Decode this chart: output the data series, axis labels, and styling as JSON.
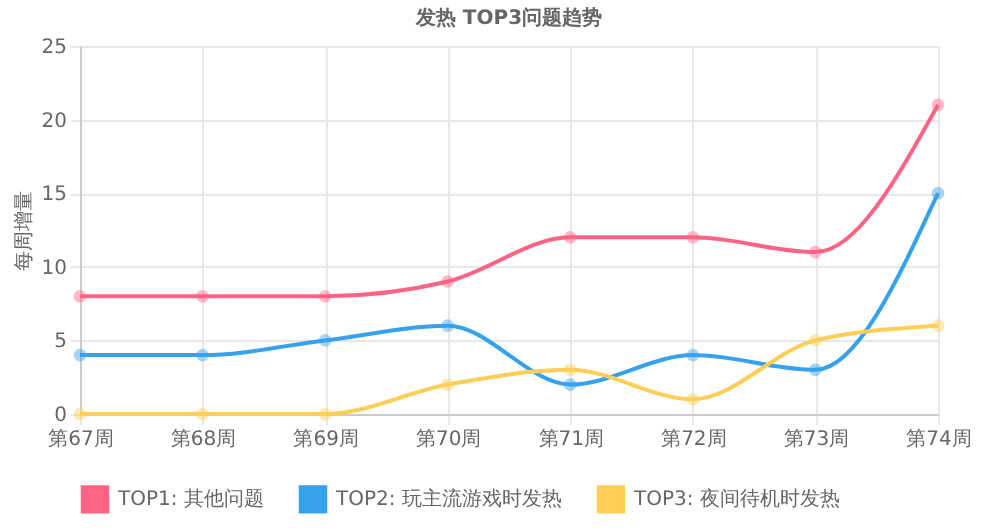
{
  "chart_data": {
    "type": "line",
    "title": "发热 TOP3问题趋势",
    "ylabel": "每周增量",
    "categories": [
      "第67周",
      "第68周",
      "第69周",
      "第70周",
      "第71周",
      "第72周",
      "第73周",
      "第74周"
    ],
    "series": [
      {
        "name": "TOP1: 其他问题",
        "color": "#ff6384",
        "values": [
          8,
          8,
          8,
          9,
          12,
          12,
          11,
          21
        ]
      },
      {
        "name": "TOP2: 玩主流游戏时发热",
        "color": "#36a2eb",
        "values": [
          4,
          4,
          5,
          6,
          2,
          4,
          3,
          15
        ]
      },
      {
        "name": "TOP3: 夜间待机时发热",
        "color": "#ffce56",
        "values": [
          0,
          0,
          0,
          2,
          3,
          1,
          5,
          6
        ]
      }
    ],
    "ylim": [
      0,
      25
    ],
    "yticks": [
      0,
      5,
      10,
      15,
      20,
      25
    ],
    "grid": true,
    "legend": "bottom",
    "marker": "circle",
    "line_style": "solid"
  }
}
